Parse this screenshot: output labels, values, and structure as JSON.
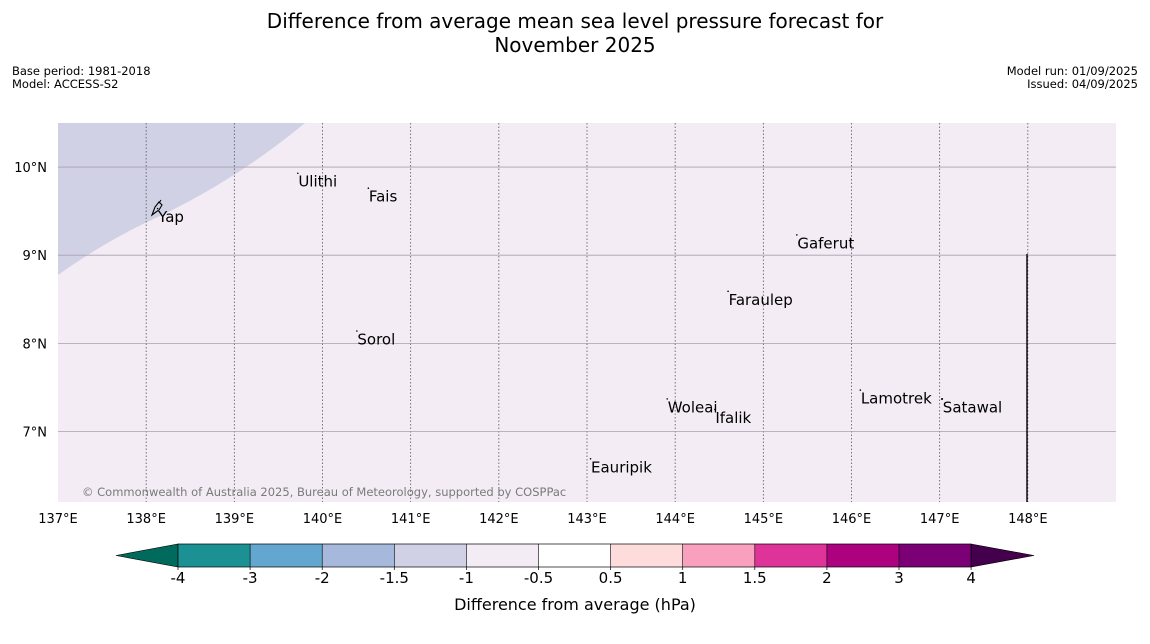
{
  "title_line1": "Difference from average mean sea level pressure forecast for",
  "title_line2": "November 2025",
  "meta_left": {
    "base_period": "Base period: 1981-2018",
    "model": "Model: ACCESS-S2"
  },
  "meta_right": {
    "model_run": "Model run: 01/09/2025",
    "issued": "Issued: 04/09/2025"
  },
  "map": {
    "lon_range": [
      137,
      149
    ],
    "lat_range": [
      6.2,
      10.5
    ],
    "lon_ticks": [
      137,
      138,
      139,
      140,
      141,
      142,
      143,
      144,
      145,
      146,
      147,
      148
    ],
    "lon_labels": [
      "137°E",
      "138°E",
      "139°E",
      "140°E",
      "141°E",
      "142°E",
      "143°E",
      "144°E",
      "145°E",
      "146°E",
      "147°E",
      "148°E"
    ],
    "lat_ticks": [
      10,
      9,
      8,
      7
    ],
    "lat_labels": [
      "10°N",
      "9°N",
      "8°N",
      "7°N"
    ],
    "background_category": "-1 to -0.5",
    "background_color": "#f3ecf5",
    "region_category": "-1.5 to -1",
    "region_color": "#d0d1e5",
    "places": [
      {
        "name": "Ulithi",
        "lon": 139.72,
        "lat": 9.93
      },
      {
        "name": "Fais",
        "lon": 140.52,
        "lat": 9.76
      },
      {
        "name": "Yap",
        "lon": 138.13,
        "lat": 9.53
      },
      {
        "name": "Gaferut",
        "lon": 145.38,
        "lat": 9.23
      },
      {
        "name": "Faraulep",
        "lon": 144.6,
        "lat": 8.59
      },
      {
        "name": "Sorol",
        "lon": 140.39,
        "lat": 8.14
      },
      {
        "name": "Lamotrek",
        "lon": 146.1,
        "lat": 7.47
      },
      {
        "name": "Woleai",
        "lon": 143.91,
        "lat": 7.37
      },
      {
        "name": "Ifalik",
        "lon": 144.45,
        "lat": 7.25
      },
      {
        "name": "Satawal",
        "lon": 147.03,
        "lat": 7.37
      },
      {
        "name": "Eauripik",
        "lon": 143.04,
        "lat": 6.69
      }
    ],
    "copyright": "© Commonwealth of Australia 2025, Bureau of Meteorology, supported by COSPPac"
  },
  "colorbar": {
    "label": "Difference from average (hPa)",
    "tick_labels": [
      "-4",
      "-3",
      "-2",
      "-1.5",
      "-1",
      "-0.5",
      "0.5",
      "1",
      "1.5",
      "2",
      "3",
      "4"
    ],
    "low_extend_color": "#006b5c",
    "high_extend_color": "#45004d",
    "colors": [
      "#1b9193",
      "#63a6d0",
      "#a6b8dc",
      "#d0d1e5",
      "#f3ecf5",
      "#ffffff",
      "#fddcdb",
      "#f8a0bd",
      "#de349a",
      "#ac0280",
      "#7b0076"
    ]
  }
}
